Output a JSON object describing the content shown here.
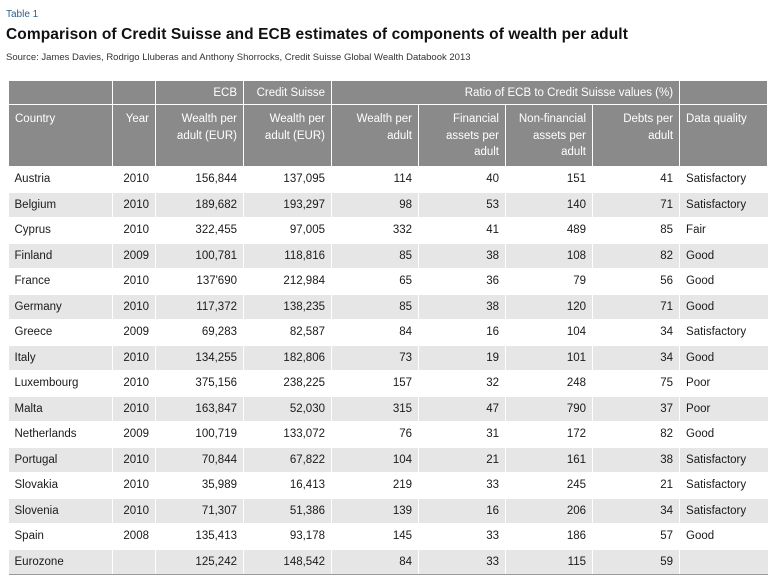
{
  "table_label": "Table 1",
  "title": "Comparison of Credit Suisse and ECB estimates of components of wealth per adult",
  "source": "Source: James Davies, Rodrigo Lluberas and Anthony Shorrocks, Credit Suisse Global Wealth Databook 2013",
  "header_groups": {
    "ecb": "ECB",
    "credit_suisse": "Credit Suisse",
    "ratio": "Ratio of ECB to Credit Suisse values (%)"
  },
  "columns": {
    "country": "Country",
    "year": "Year",
    "ecb_wealth": "Wealth per adult (EUR)",
    "cs_wealth": "Wealth per adult (EUR)",
    "ratio_wealth": "Wealth per adult",
    "ratio_financial": "Financial assets per adult",
    "ratio_nonfinancial": "Non-financial assets per adult",
    "ratio_debts": "Debts per adult",
    "data_quality": "Data quality"
  },
  "rows": [
    {
      "country": "Austria",
      "year": "2010",
      "ecb": "156,844",
      "cs": "137,095",
      "wealth": "114",
      "financial": "40",
      "nonfinancial": "151",
      "debts": "41",
      "quality": "Satisfactory"
    },
    {
      "country": "Belgium",
      "year": "2010",
      "ecb": "189,682",
      "cs": "193,297",
      "wealth": "98",
      "financial": "53",
      "nonfinancial": "140",
      "debts": "71",
      "quality": "Satisfactory"
    },
    {
      "country": "Cyprus",
      "year": "2010",
      "ecb": "322,455",
      "cs": "97,005",
      "wealth": "332",
      "financial": "41",
      "nonfinancial": "489",
      "debts": "85",
      "quality": "Fair"
    },
    {
      "country": "Finland",
      "year": "2009",
      "ecb": "100,781",
      "cs": "118,816",
      "wealth": "85",
      "financial": "38",
      "nonfinancial": "108",
      "debts": "82",
      "quality": "Good"
    },
    {
      "country": "France",
      "year": "2010",
      "ecb": "137'690",
      "cs": "212,984",
      "wealth": "65",
      "financial": "36",
      "nonfinancial": "79",
      "debts": "56",
      "quality": "Good"
    },
    {
      "country": "Germany",
      "year": "2010",
      "ecb": "117,372",
      "cs": "138,235",
      "wealth": "85",
      "financial": "38",
      "nonfinancial": "120",
      "debts": "71",
      "quality": "Good"
    },
    {
      "country": "Greece",
      "year": "2009",
      "ecb": "69,283",
      "cs": "82,587",
      "wealth": "84",
      "financial": "16",
      "nonfinancial": "104",
      "debts": "34",
      "quality": "Satisfactory"
    },
    {
      "country": "Italy",
      "year": "2010",
      "ecb": "134,255",
      "cs": "182,806",
      "wealth": "73",
      "financial": "19",
      "nonfinancial": "101",
      "debts": "34",
      "quality": "Good"
    },
    {
      "country": "Luxembourg",
      "year": "2010",
      "ecb": "375,156",
      "cs": "238,225",
      "wealth": "157",
      "financial": "32",
      "nonfinancial": "248",
      "debts": "75",
      "quality": "Poor"
    },
    {
      "country": "Malta",
      "year": "2010",
      "ecb": "163,847",
      "cs": "52,030",
      "wealth": "315",
      "financial": "47",
      "nonfinancial": "790",
      "debts": "37",
      "quality": "Poor"
    },
    {
      "country": "Netherlands",
      "year": "2009",
      "ecb": "100,719",
      "cs": "133,072",
      "wealth": "76",
      "financial": "31",
      "nonfinancial": "172",
      "debts": "82",
      "quality": "Good"
    },
    {
      "country": "Portugal",
      "year": "2010",
      "ecb": "70,844",
      "cs": "67,822",
      "wealth": "104",
      "financial": "21",
      "nonfinancial": "161",
      "debts": "38",
      "quality": "Satisfactory"
    },
    {
      "country": "Slovakia",
      "year": "2010",
      "ecb": "35,989",
      "cs": "16,413",
      "wealth": "219",
      "financial": "33",
      "nonfinancial": "245",
      "debts": "21",
      "quality": "Satisfactory"
    },
    {
      "country": "Slovenia",
      "year": "2010",
      "ecb": "71,307",
      "cs": "51,386",
      "wealth": "139",
      "financial": "16",
      "nonfinancial": "206",
      "debts": "34",
      "quality": "Satisfactory"
    },
    {
      "country": "Spain",
      "year": "2008",
      "ecb": "135,413",
      "cs": "93,178",
      "wealth": "145",
      "financial": "33",
      "nonfinancial": "186",
      "debts": "57",
      "quality": "Good"
    },
    {
      "country": "Eurozone",
      "year": "",
      "ecb": "125,242",
      "cs": "148,542",
      "wealth": "84",
      "financial": "33",
      "nonfinancial": "115",
      "debts": "59",
      "quality": ""
    }
  ]
}
